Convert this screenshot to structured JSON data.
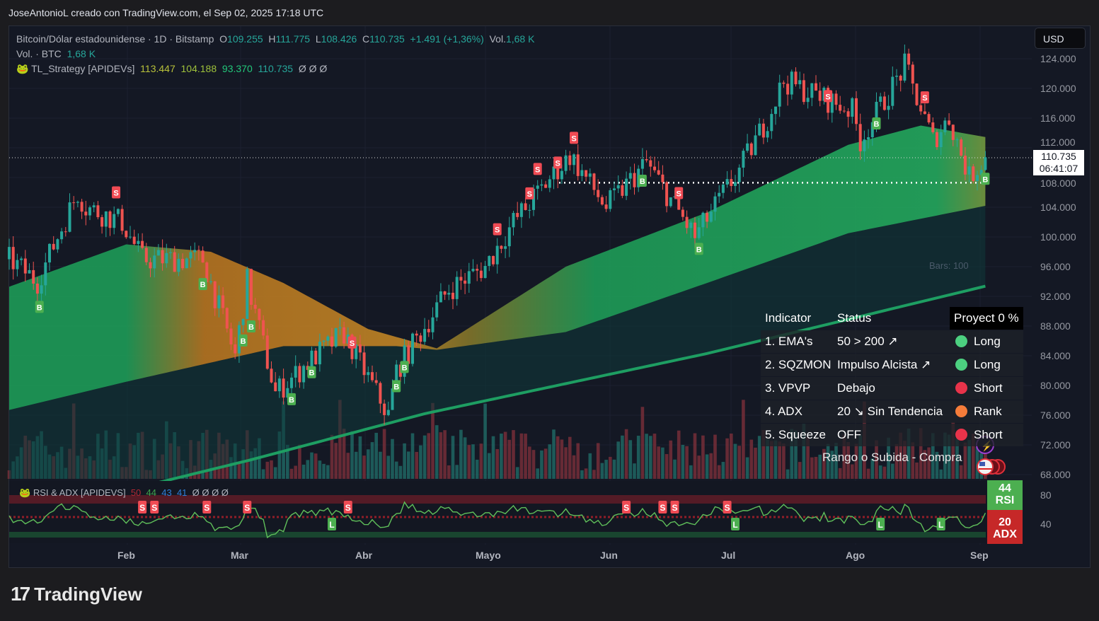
{
  "credit": "JoseAntonioL creado con TradingView.com, el Sep 02, 2025 17:18 UTC",
  "legend": {
    "symbol": "Bitcoin/Dólar estadounidense · 1D · Bitstamp",
    "o_label": "O",
    "o": "109.255",
    "h_label": "H",
    "h": "111.775",
    "l_label": "L",
    "l": "108.426",
    "c_label": "C",
    "c": "110.735",
    "change": "+1.491 (+1,36%)",
    "vol_label": "Vol.",
    "vol": "1,68 K",
    "vol2_label": "Vol. · BTC",
    "vol2": "1,68 K",
    "strategy": "TL_Strategy [APIDEVs]",
    "s1": "113.447",
    "s2": "104.188",
    "s3": "93.370",
    "s4": "110.735",
    "nulls": "Ø  Ø  Ø"
  },
  "currency": "USD",
  "price_axis": [
    "124.000",
    "120.000",
    "116.000",
    "112.000",
    "108.000",
    "104.000",
    "100.000",
    "96.000",
    "92.000",
    "88.000",
    "84.000",
    "80.000",
    "76.000",
    "72.000",
    "68.000"
  ],
  "price_tag": {
    "price": "110.735",
    "countdown": "06:41:07"
  },
  "bars_label": "Bars: 100",
  "months": [
    "Feb",
    "Mar",
    "Abr",
    "Mayo",
    "Jun",
    "Jul",
    "Ago",
    "Sep"
  ],
  "table": {
    "headers": [
      "Indicator",
      "Status",
      "Proyect 0 %"
    ],
    "rows": [
      {
        "ind": "1. EMA's",
        "status": "50 > 200 ↗",
        "signal": "Long",
        "color": "#4cd080"
      },
      {
        "ind": "2. SQZMON",
        "status": "Impulso Alcista ↗",
        "signal": "Long",
        "color": "#4cd080"
      },
      {
        "ind": "3. VPVP",
        "status": "Debajo",
        "signal": "Short",
        "color": "#e8334a"
      },
      {
        "ind": "4. ADX",
        "status": "20 ↘ Sin Tendencia",
        "signal": "Rank",
        "color": "#f57c3a"
      },
      {
        "ind": "5. Squeeze",
        "status": "OFF",
        "signal": "Short",
        "color": "#e8334a"
      }
    ],
    "footer": "Rango o Subida - Compra"
  },
  "rsi_panel": {
    "title": "RSI & ADX [APIDEVS]",
    "v1": "50",
    "v2": "44",
    "v3": "43",
    "v4": "41",
    "nulls": "Ø  Ø  Ø  Ø",
    "axis": [
      "80",
      "40"
    ],
    "rsi_value": "44",
    "rsi_label": "RSI",
    "adx_value": "20",
    "adx_label": "ADX",
    "signals": [
      {
        "day": 33,
        "t": "S"
      },
      {
        "day": 36,
        "t": "S"
      },
      {
        "day": 49,
        "t": "S"
      },
      {
        "day": 59,
        "t": "S"
      },
      {
        "day": 80,
        "t": "L"
      },
      {
        "day": 84,
        "t": "S"
      },
      {
        "day": 153,
        "t": "S"
      },
      {
        "day": 162,
        "t": "S"
      },
      {
        "day": 165,
        "t": "S"
      },
      {
        "day": 178,
        "t": "S"
      },
      {
        "day": 180,
        "t": "L"
      },
      {
        "day": 216,
        "t": "L"
      },
      {
        "day": 231,
        "t": "L"
      }
    ]
  },
  "brand": "TradingView",
  "chart_data": {
    "type": "candlestick",
    "start": "2025-01-03",
    "end": "2025-09-02",
    "ylim": [
      68000,
      124000
    ],
    "close_keypoints": [
      [
        0,
        97000
      ],
      [
        7,
        94000
      ],
      [
        17,
        106000
      ],
      [
        19,
        104000
      ],
      [
        28,
        102000
      ],
      [
        33,
        97000
      ],
      [
        48,
        97000
      ],
      [
        56,
        84000
      ],
      [
        59,
        94000
      ],
      [
        66,
        79000
      ],
      [
        76,
        84000
      ],
      [
        83,
        87000
      ],
      [
        94,
        76000
      ],
      [
        96,
        82000
      ],
      [
        109,
        93000
      ],
      [
        118,
        96000
      ],
      [
        125,
        102000
      ],
      [
        139,
        111000
      ],
      [
        148,
        104000
      ],
      [
        158,
        110000
      ],
      [
        170,
        100000
      ],
      [
        181,
        109000
      ],
      [
        188,
        116000
      ],
      [
        192,
        121000
      ],
      [
        209,
        117000
      ],
      [
        211,
        113000
      ],
      [
        222,
        123000
      ],
      [
        229,
        113000
      ],
      [
        233,
        116000
      ],
      [
        238,
        108000
      ],
      [
        242,
        110735
      ]
    ],
    "cloud_upper": [
      [
        0,
        93300
      ],
      [
        29,
        99000
      ],
      [
        50,
        98000
      ],
      [
        68,
        93800
      ],
      [
        89,
        87600
      ],
      [
        106,
        85000
      ],
      [
        138,
        96000
      ],
      [
        173,
        103300
      ],
      [
        208,
        112400
      ],
      [
        226,
        115000
      ],
      [
        242,
        113447
      ]
    ],
    "cloud_lower": [
      [
        0,
        76700
      ],
      [
        29,
        80500
      ],
      [
        68,
        85300
      ],
      [
        96,
        85300
      ],
      [
        106,
        84800
      ],
      [
        138,
        87200
      ],
      [
        173,
        93800
      ],
      [
        208,
        100500
      ],
      [
        242,
        104188
      ]
    ],
    "ema200": [
      [
        0,
        62000
      ],
      [
        60,
        70000
      ],
      [
        103,
        76200
      ],
      [
        173,
        84300
      ],
      [
        242,
        93370
      ]
    ],
    "level_line": 107300,
    "signals": [
      {
        "day": 7.5,
        "t": "B"
      },
      {
        "day": 26.5,
        "t": "S"
      },
      {
        "day": 48,
        "t": "B"
      },
      {
        "day": 58,
        "t": "B"
      },
      {
        "day": 60,
        "t": "B"
      },
      {
        "day": 70,
        "t": "B"
      },
      {
        "day": 75,
        "t": "B"
      },
      {
        "day": 85,
        "t": "S"
      },
      {
        "day": 96,
        "t": "B"
      },
      {
        "day": 98,
        "t": "B"
      },
      {
        "day": 121,
        "t": "S"
      },
      {
        "day": 129,
        "t": "S"
      },
      {
        "day": 131,
        "t": "S"
      },
      {
        "day": 136,
        "t": "S"
      },
      {
        "day": 140,
        "t": "S"
      },
      {
        "day": 157,
        "t": "B"
      },
      {
        "day": 166,
        "t": "S"
      },
      {
        "day": 171,
        "t": "B"
      },
      {
        "day": 203,
        "t": "S"
      },
      {
        "day": 215,
        "t": "B"
      },
      {
        "day": 227,
        "t": "S"
      },
      {
        "day": 242,
        "t": "B"
      }
    ]
  }
}
